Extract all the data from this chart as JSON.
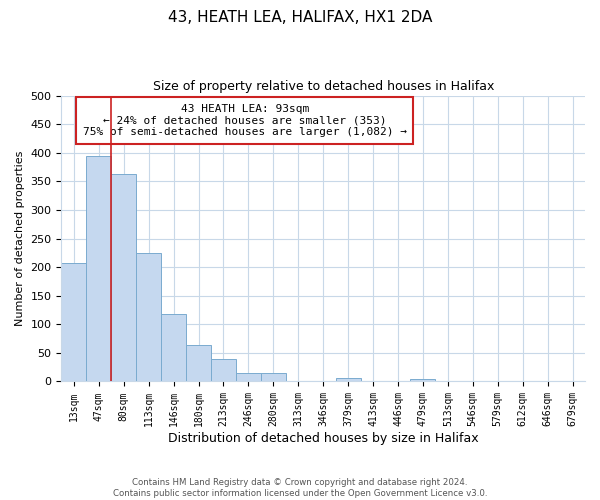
{
  "title": "43, HEATH LEA, HALIFAX, HX1 2DA",
  "subtitle": "Size of property relative to detached houses in Halifax",
  "xlabel": "Distribution of detached houses by size in Halifax",
  "ylabel": "Number of detached properties",
  "bar_labels": [
    "13sqm",
    "47sqm",
    "80sqm",
    "113sqm",
    "146sqm",
    "180sqm",
    "213sqm",
    "246sqm",
    "280sqm",
    "313sqm",
    "346sqm",
    "379sqm",
    "413sqm",
    "446sqm",
    "479sqm",
    "513sqm",
    "546sqm",
    "579sqm",
    "612sqm",
    "646sqm",
    "679sqm"
  ],
  "bar_values": [
    207,
    395,
    363,
    224,
    118,
    63,
    40,
    14,
    14,
    0,
    0,
    6,
    0,
    0,
    5,
    0,
    0,
    0,
    0,
    0,
    1
  ],
  "bar_color": "#c5d8ef",
  "bar_edge_color": "#7aabcf",
  "vline_color": "#cc2222",
  "vline_x_index": 2,
  "annotation_title": "43 HEATH LEA: 93sqm",
  "annotation_line1": "← 24% of detached houses are smaller (353)",
  "annotation_line2": "75% of semi-detached houses are larger (1,082) →",
  "annotation_box_facecolor": "#ffffff",
  "annotation_box_edgecolor": "#cc2222",
  "ylim": [
    0,
    500
  ],
  "yticks": [
    0,
    50,
    100,
    150,
    200,
    250,
    300,
    350,
    400,
    450,
    500
  ],
  "footer1": "Contains HM Land Registry data © Crown copyright and database right 2024.",
  "footer2": "Contains public sector information licensed under the Open Government Licence v3.0.",
  "bg_color": "#ffffff",
  "grid_color": "#c8d8e8",
  "title_fontsize": 11,
  "subtitle_fontsize": 9,
  "ylabel_fontsize": 8,
  "xlabel_fontsize": 9,
  "tick_fontsize": 7
}
